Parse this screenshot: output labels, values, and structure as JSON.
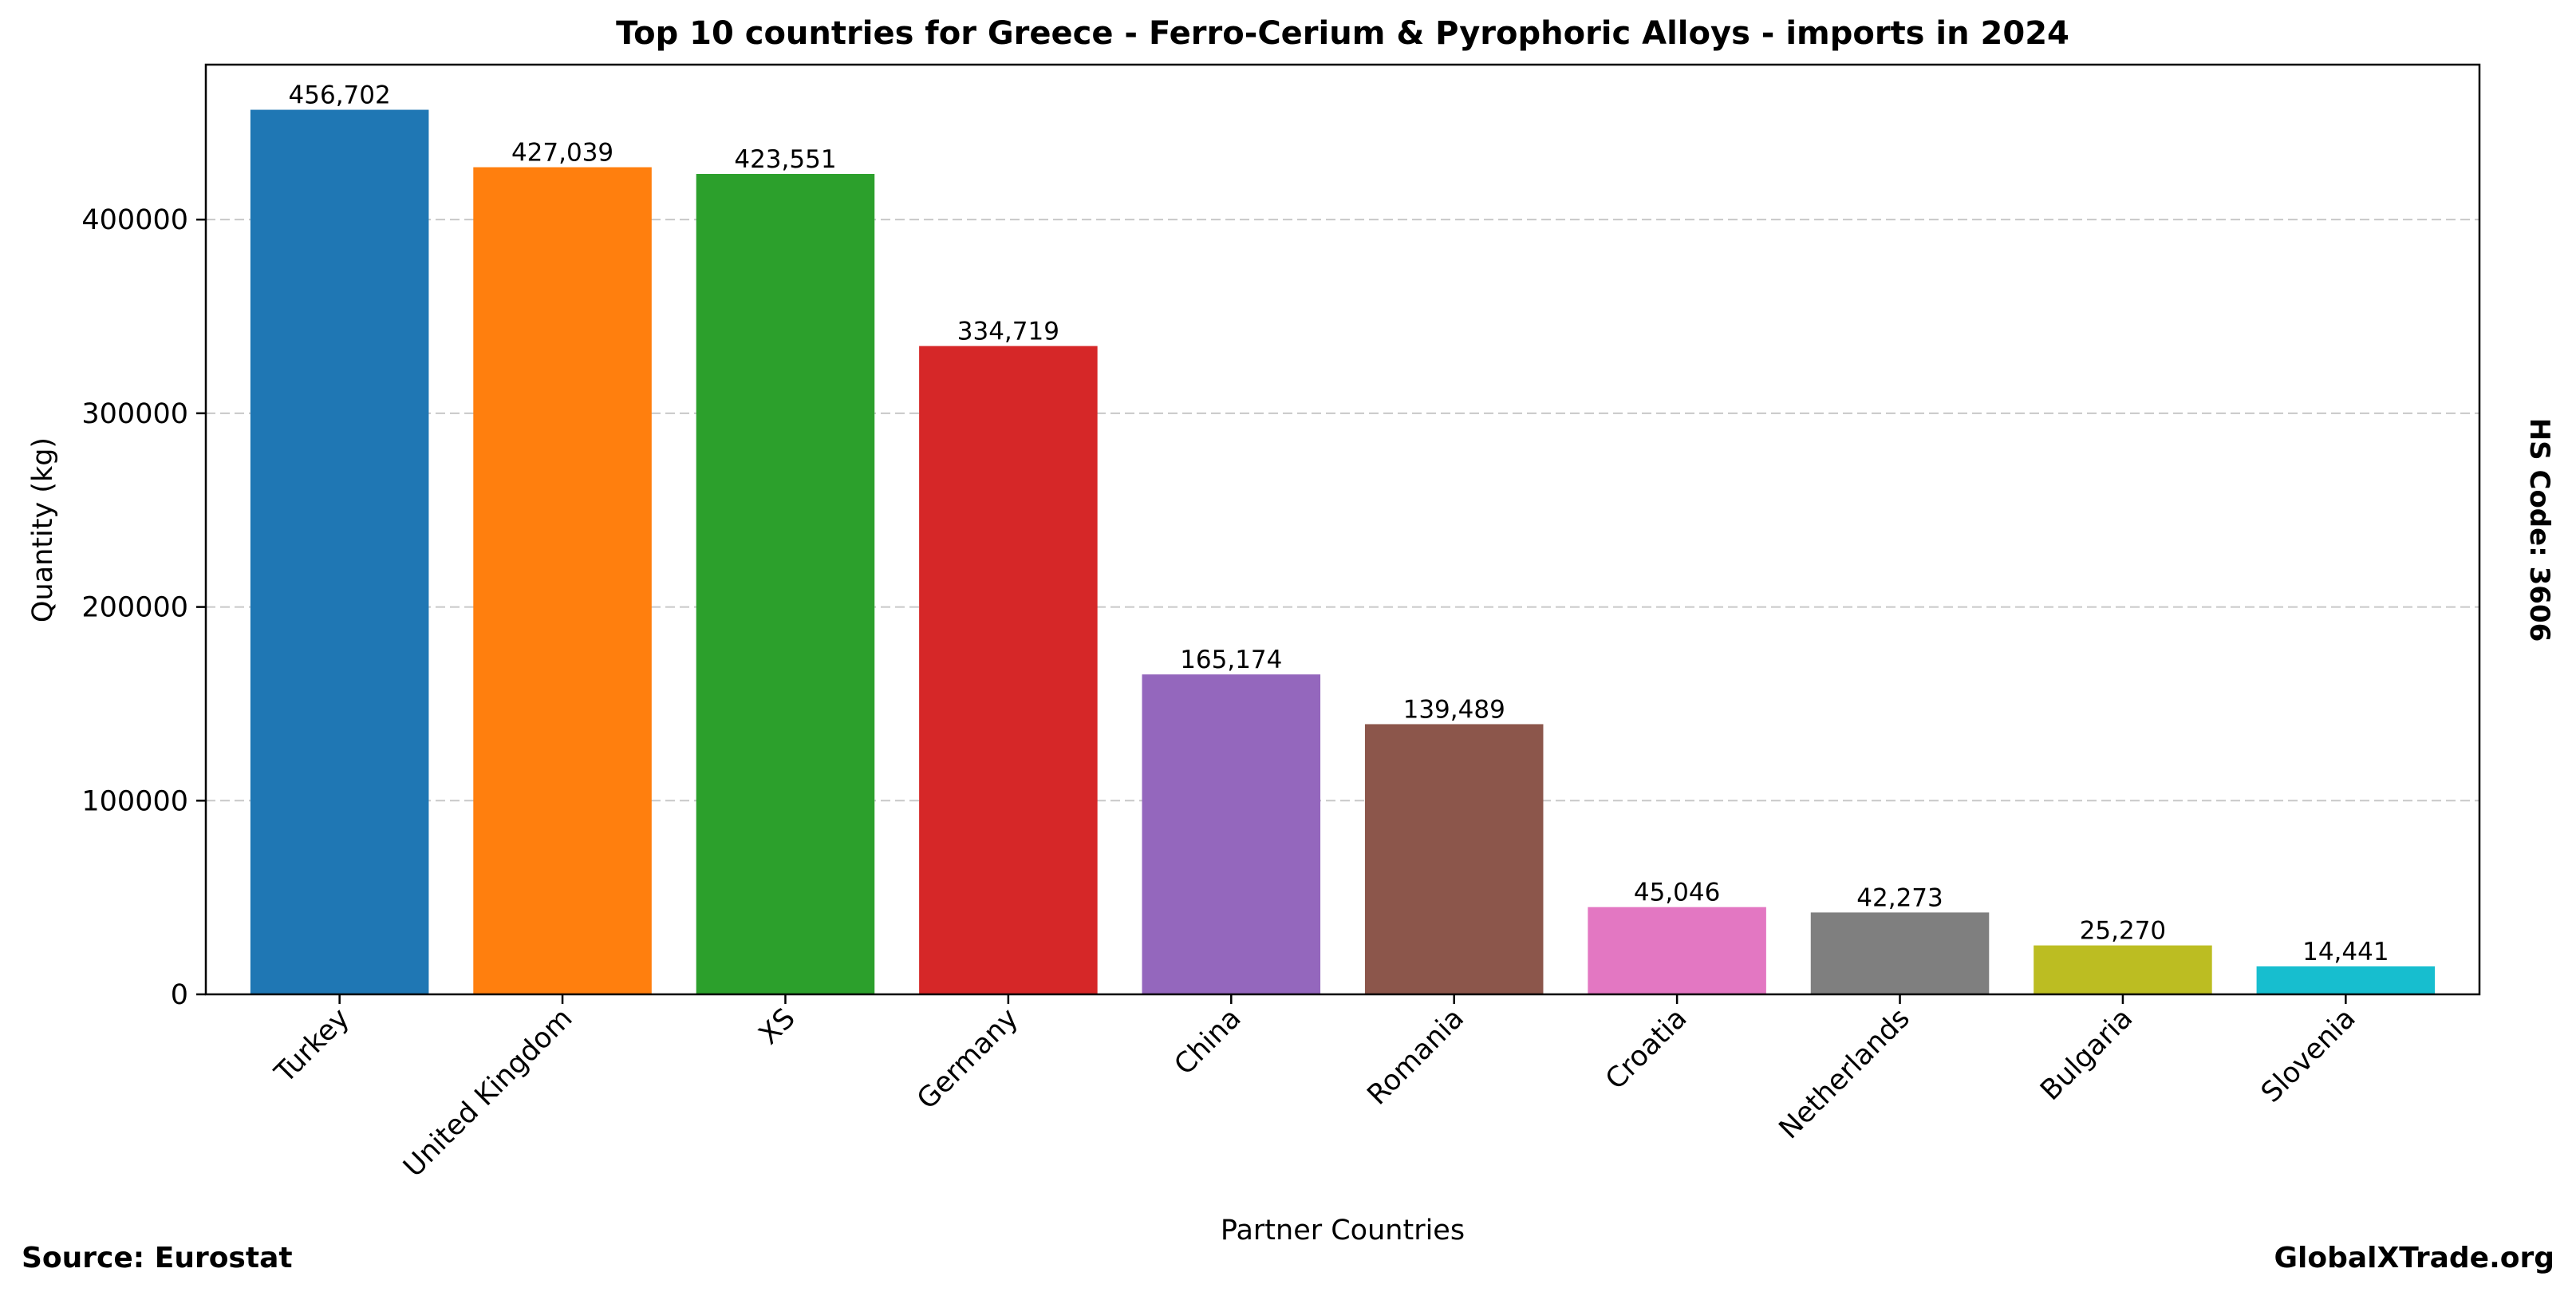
{
  "chart_data": {
    "type": "bar",
    "title": "Top 10 countries for Greece - Ferro-Cerium & Pyrophoric Alloys - imports in 2024",
    "xlabel": "Partner Countries",
    "ylabel": "Quantity (kg)",
    "categories": [
      "Turkey",
      "United Kingdom",
      "XS",
      "Germany",
      "China",
      "Romania",
      "Croatia",
      "Netherlands",
      "Bulgaria",
      "Slovenia"
    ],
    "values": [
      456702,
      427039,
      423551,
      334719,
      165174,
      139489,
      45046,
      42273,
      25270,
      14441
    ],
    "value_labels": [
      "456,702",
      "427,039",
      "423,551",
      "334,719",
      "165,174",
      "139,489",
      "45,046",
      "42,273",
      "25,270",
      "14,441"
    ],
    "colors": [
      "#1f77b4",
      "#ff7f0e",
      "#2ca02c",
      "#d62728",
      "#9467bd",
      "#8c564b",
      "#e377c2",
      "#7f7f7f",
      "#bcbd22",
      "#17becf"
    ],
    "ylim": [
      0,
      480000
    ],
    "yticks": [
      0,
      100000,
      200000,
      300000,
      400000
    ],
    "ytick_labels": [
      "0",
      "100000",
      "200000",
      "300000",
      "400000"
    ],
    "grid": "y-dashed",
    "legend": "none"
  },
  "footer": {
    "source": "Source: Eurostat",
    "site": "GlobalXTrade.org",
    "hs_code": "HS Code: 3606"
  }
}
